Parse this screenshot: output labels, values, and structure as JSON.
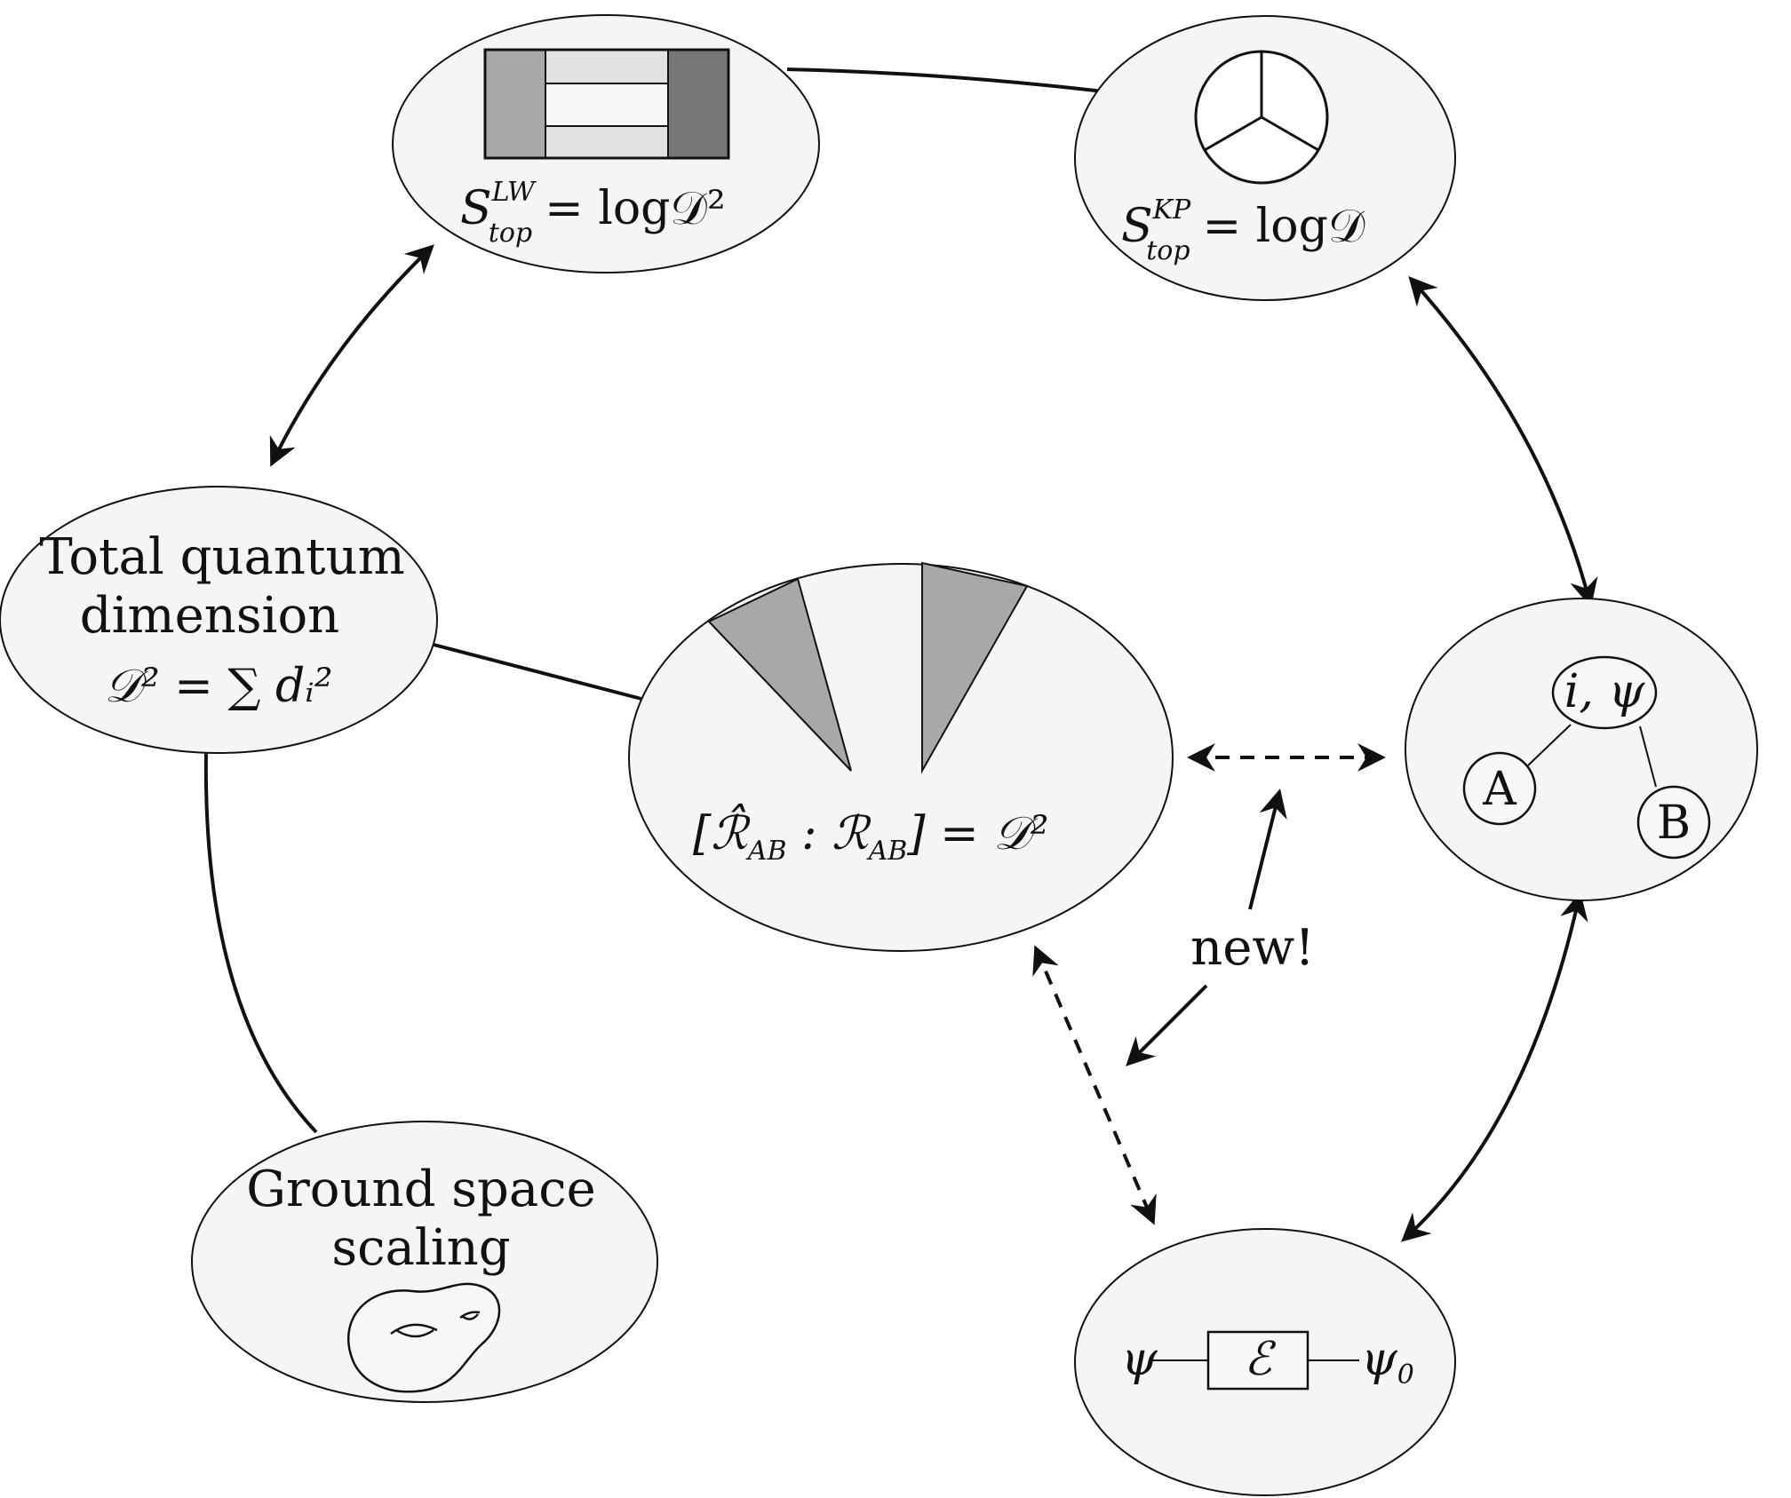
{
  "nodes": {
    "lw": {
      "s": "S",
      "sup": "LW",
      "sub": "top",
      "rhs": "= log𝒟²"
    },
    "kp": {
      "s": "S",
      "sup": "KP",
      "sub": "top",
      "rhs": "= log𝒟"
    },
    "total_dim": {
      "line1": "Total quantum",
      "line2": "dimension",
      "formula": "𝒟² = ∑ dᵢ²"
    },
    "index": {
      "formula": "[ℛ̂",
      "ab1": "AB",
      "mid": " : ℛ",
      "ab2": "AB",
      "rhs": "] = 𝒟²"
    },
    "tree": {
      "root": "i, ψ",
      "left": "A",
      "right": "B"
    },
    "ground": {
      "line1": "Ground space",
      "line2": "scaling"
    },
    "channel": {
      "input": "ψ",
      "box": "ℰ",
      "output": "ψ",
      "output_sub": "0"
    }
  },
  "annotations": {
    "new_label": "new!"
  }
}
